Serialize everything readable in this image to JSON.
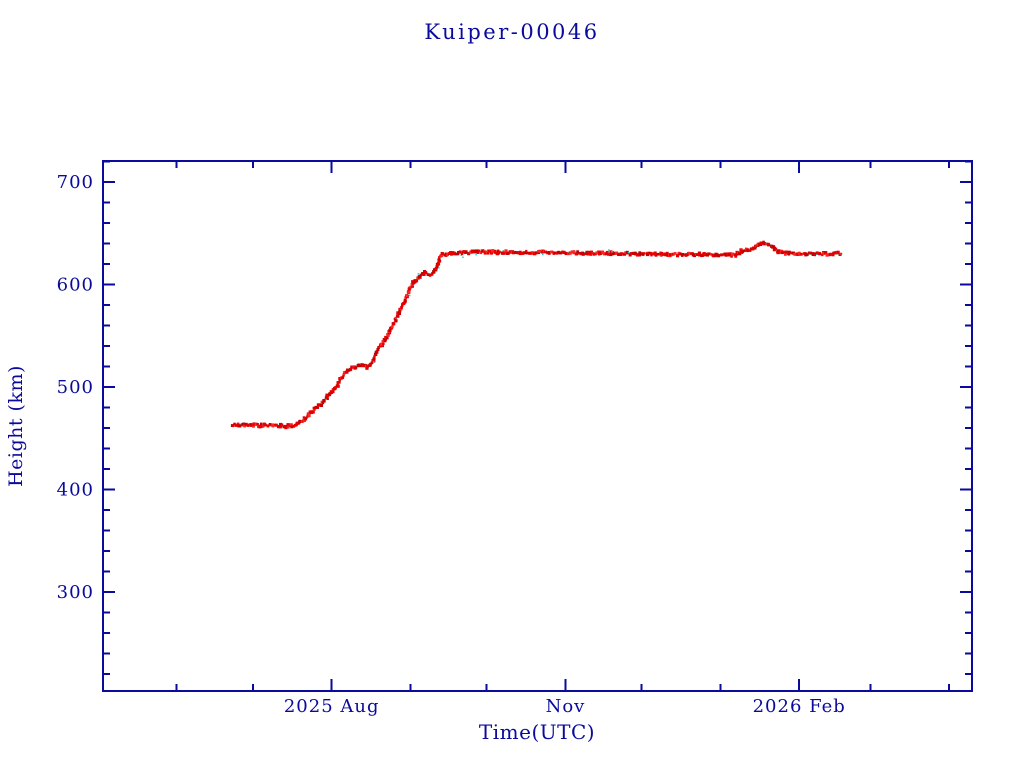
{
  "colors": {
    "foreground": "#0a0a9c",
    "background": "#ffffff",
    "series_red": "#e60000",
    "series_red_dark": "#c40000",
    "series_red_bright": "#ff2424",
    "series_cyan": "#1fcfcf"
  },
  "chart_data": {
    "type": "line",
    "title": "Kuiper-00046",
    "xlabel": "Time(UTC)",
    "ylabel": "Height (km)",
    "grid": false,
    "legend": false,
    "xlim": [
      "2025-05-03",
      "2026-04-10"
    ],
    "ylim": [
      203.4,
      720.5
    ],
    "y_ticks_major": [
      300,
      400,
      500,
      600,
      700
    ],
    "y_minor_step": 20,
    "x_ticks_major": [
      {
        "date": "2025-08-01",
        "label": "2025 Aug"
      },
      {
        "date": "2025-11-01",
        "label": "Nov"
      },
      {
        "date": "2026-02-01",
        "label": "2026 Feb"
      }
    ],
    "x_ticks_minor_dates": [
      "2025-06-01",
      "2025-07-01",
      "2025-08-01",
      "2025-09-01",
      "2025-10-01",
      "2025-11-01",
      "2025-12-01",
      "2026-01-01",
      "2026-02-01",
      "2026-03-01",
      "2026-04-01"
    ],
    "series": [
      {
        "name": "height-km",
        "style": "red speckled symbols over thin cyan line",
        "points": [
          [
            "2025-06-23",
            463
          ],
          [
            "2025-06-28",
            463
          ],
          [
            "2025-07-04",
            462.5
          ],
          [
            "2025-07-10",
            462.5
          ],
          [
            "2025-07-14",
            461.8
          ],
          [
            "2025-07-17",
            462
          ],
          [
            "2025-07-20",
            466
          ],
          [
            "2025-07-24",
            475
          ],
          [
            "2025-07-28",
            484
          ],
          [
            "2025-08-01",
            495
          ],
          [
            "2025-08-04",
            505
          ],
          [
            "2025-08-07",
            516
          ],
          [
            "2025-08-09",
            519
          ],
          [
            "2025-08-12",
            520.5
          ],
          [
            "2025-08-15",
            519.5
          ],
          [
            "2025-08-17",
            523
          ],
          [
            "2025-08-19",
            536
          ],
          [
            "2025-08-22",
            546
          ],
          [
            "2025-08-24",
            556
          ],
          [
            "2025-08-26",
            565
          ],
          [
            "2025-08-28",
            575
          ],
          [
            "2025-08-30",
            585
          ],
          [
            "2025-09-01",
            597
          ],
          [
            "2025-09-03",
            604
          ],
          [
            "2025-09-05",
            608
          ],
          [
            "2025-09-07",
            612
          ],
          [
            "2025-09-09",
            609
          ],
          [
            "2025-09-11",
            614
          ],
          [
            "2025-09-12",
            622
          ],
          [
            "2025-09-13",
            629
          ],
          [
            "2025-09-16",
            630
          ],
          [
            "2025-09-21",
            630.5
          ],
          [
            "2025-09-27",
            632
          ],
          [
            "2025-10-05",
            631.5
          ],
          [
            "2025-10-15",
            631.5
          ],
          [
            "2025-11-01",
            631
          ],
          [
            "2025-11-15",
            630.5
          ],
          [
            "2025-12-01",
            630
          ],
          [
            "2025-12-15",
            629.5
          ],
          [
            "2026-01-01",
            629
          ],
          [
            "2026-01-07",
            628.8
          ],
          [
            "2026-01-09",
            632
          ],
          [
            "2026-01-11",
            633.5
          ],
          [
            "2026-01-13",
            633.5
          ],
          [
            "2026-01-15",
            637
          ],
          [
            "2026-01-16",
            640
          ],
          [
            "2026-01-18",
            641
          ],
          [
            "2026-01-20",
            639.5
          ],
          [
            "2026-01-22",
            636
          ],
          [
            "2026-01-24",
            632
          ],
          [
            "2026-01-26",
            630.5
          ],
          [
            "2026-02-01",
            630
          ],
          [
            "2026-02-08",
            629.7
          ],
          [
            "2026-02-14",
            630
          ],
          [
            "2026-02-18",
            630
          ]
        ]
      }
    ]
  }
}
